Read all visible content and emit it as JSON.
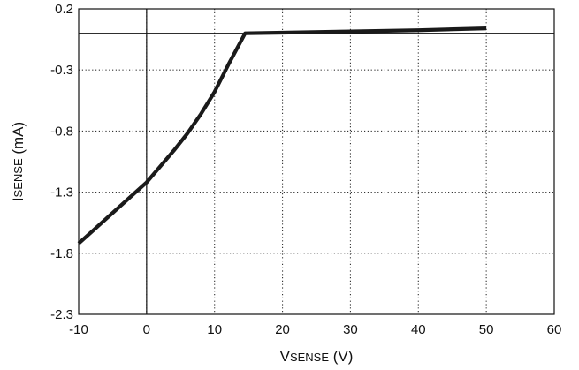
{
  "chart_data": {
    "type": "line",
    "title": "",
    "xlabel": {
      "lead": "V",
      "rest": "SENSE",
      "tail": " (V)"
    },
    "ylabel": {
      "lead": "I",
      "rest": "SENSE",
      "tail": " (mA)"
    },
    "xlim": [
      -10,
      60
    ],
    "ylim": [
      -2.3,
      0.2
    ],
    "xticks": [
      -10,
      0,
      10,
      20,
      30,
      40,
      50,
      60
    ],
    "yticks": [
      -2.3,
      -1.8,
      -1.3,
      -0.8,
      -0.3,
      0.2
    ],
    "xtick_labels": [
      "-10",
      "0",
      "10",
      "20",
      "30",
      "40",
      "50",
      "60"
    ],
    "ytick_labels": [
      "-2.3",
      "-1.8",
      "-1.3",
      "-0.8",
      "-0.3",
      "0.2"
    ],
    "grid": true,
    "grid_style": "dotted",
    "reference_lines": {
      "x": 0,
      "y": 0
    },
    "series": [
      {
        "color": "#1a1a1a",
        "x": [
          -10,
          -8,
          -6,
          -4,
          -2,
          0,
          2,
          4,
          6,
          8,
          10,
          12,
          14.5,
          20,
          30,
          40,
          50
        ],
        "y": [
          -1.72,
          -1.62,
          -1.52,
          -1.42,
          -1.32,
          -1.22,
          -1.09,
          -0.96,
          -0.82,
          -0.66,
          -0.48,
          -0.26,
          0.0,
          0.005,
          0.015,
          0.025,
          0.04
        ]
      }
    ]
  }
}
